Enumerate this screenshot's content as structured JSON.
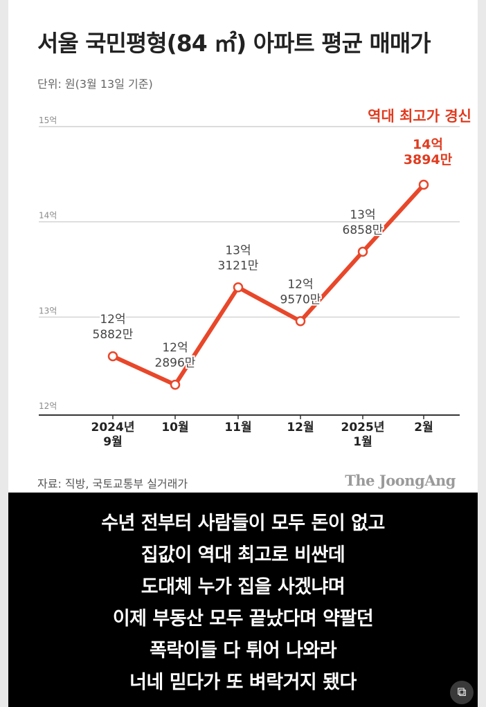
{
  "title": "서울 국민평형(84 ㎡) 아파트 평균 매매가",
  "subtitle": "단위: 원(3월 13일 기준)",
  "source": "자료: 직방, 국토교통부 실거래가",
  "publisher": "The JoongAng",
  "chart_data": {
    "type": "line",
    "title": "서울 국민평형(84 ㎡) 아파트 평균 매매가",
    "unit": "단위: 원(3월 13일 기준)",
    "x": [
      "2024년\n9월",
      "10월",
      "11월",
      "12월",
      "2025년\n1월",
      "2월"
    ],
    "series": [
      {
        "values": [
          1258820000,
          1228960000,
          1331210000,
          1295700000,
          1368580000,
          1438940000
        ]
      }
    ],
    "data_labels": [
      "12억\n5882만",
      "12억\n2896만",
      "13억\n3121만",
      "12억\n9570만",
      "13억\n6858만",
      "14억\n3894만"
    ],
    "yticks": [
      "12억",
      "13억",
      "14억",
      "15억"
    ],
    "ytick_values": [
      1200000000,
      1300000000,
      1400000000,
      1500000000
    ],
    "ylim": [
      1200000000,
      1500000000
    ],
    "grid": true,
    "annotation": "역대 최고가 경신",
    "colors": {
      "line": "#e8472a",
      "highlight": "#e03b1f",
      "label": "#444444",
      "grid": "#c8c8c8",
      "axis": "#333333"
    }
  },
  "caption": {
    "lines": [
      "수년 전부터 사람들이 모두 돈이 없고",
      "집값이 역대 최고로 비싼데",
      "도대체 누가 집을 사겠냐며",
      "이제 부동산 모두 끝났다며 약팔던",
      "폭락이들 다 튀어 나와라",
      "너네 믿다가 또 벼락거지 됐다"
    ]
  },
  "scan_icon": "text-scan-icon"
}
